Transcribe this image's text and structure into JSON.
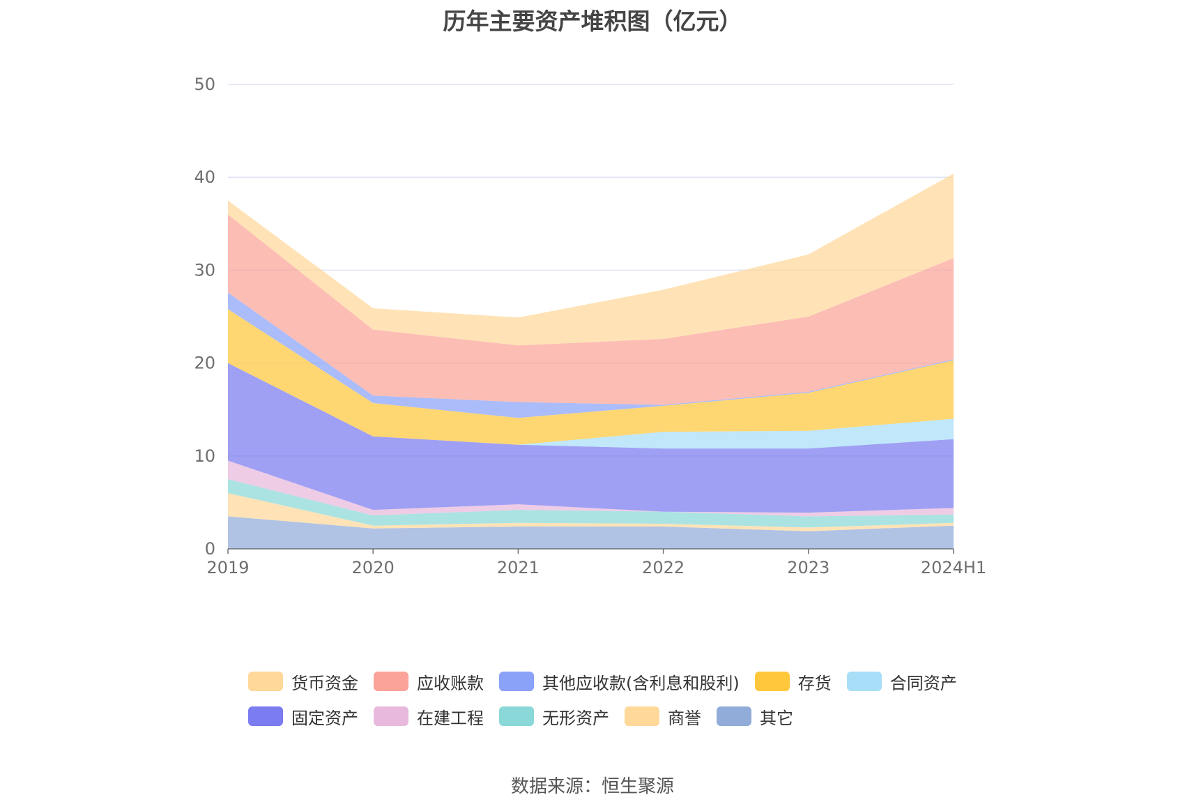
{
  "chart_data": {
    "type": "area",
    "stacked": true,
    "title": "历年主要资产堆积图（亿元）",
    "source": "数据来源：恒生聚源",
    "categories": [
      "2019",
      "2020",
      "2021",
      "2022",
      "2023",
      "2024H1"
    ],
    "ylim": [
      0,
      50
    ],
    "yticks": [
      "0",
      "10",
      "20",
      "30",
      "40",
      "50"
    ],
    "grid": true,
    "legend_position": "bottom",
    "series": [
      {
        "name": "其它",
        "color": "#91acd9",
        "values": [
          3.5,
          2.2,
          2.4,
          2.4,
          1.9,
          2.5
        ]
      },
      {
        "name": "商誉",
        "color": "#ffd89a",
        "values": [
          2.5,
          0.3,
          0.4,
          0.3,
          0.4,
          0.3
        ]
      },
      {
        "name": "无形资产",
        "color": "#8ad8d7",
        "values": [
          1.5,
          1.1,
          1.4,
          1.3,
          1.2,
          0.9
        ]
      },
      {
        "name": "在建工程",
        "color": "#e8b9dd",
        "values": [
          2.0,
          0.6,
          0.6,
          0.0,
          0.4,
          0.7
        ]
      },
      {
        "name": "固定资产",
        "color": "#7a7cf0",
        "values": [
          10.5,
          7.9,
          6.4,
          6.8,
          6.9,
          7.4
        ]
      },
      {
        "name": "合同资产",
        "color": "#a8def8",
        "values": [
          0.0,
          0.0,
          0.0,
          1.8,
          1.9,
          2.2
        ]
      },
      {
        "name": "存货",
        "color": "#ffc73c",
        "values": [
          5.8,
          3.6,
          2.9,
          2.8,
          4.1,
          6.3
        ]
      },
      {
        "name": "其他应收款(含利息和股利)",
        "color": "#8aa2f8",
        "values": [
          1.8,
          0.8,
          1.7,
          0.1,
          0.1,
          0.1
        ]
      },
      {
        "name": "应收账款",
        "color": "#fba399",
        "values": [
          8.4,
          7.1,
          6.1,
          7.1,
          8.1,
          10.9
        ]
      },
      {
        "name": "货币资金",
        "color": "#ffd89a",
        "values": [
          1.5,
          2.3,
          3.0,
          5.3,
          6.7,
          9.1
        ]
      }
    ],
    "legend_order": [
      "货币资金",
      "应收账款",
      "其他应收款(含利息和股利)",
      "存货",
      "合同资产",
      "固定资产",
      "在建工程",
      "无形资产",
      "商誉",
      "其它"
    ]
  }
}
